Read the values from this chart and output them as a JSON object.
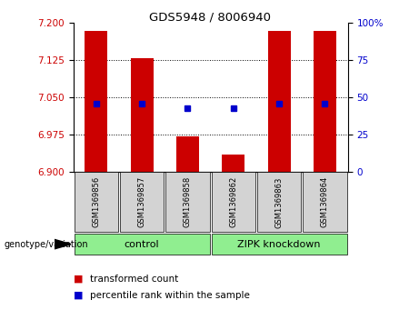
{
  "title": "GDS5948 / 8006940",
  "samples": [
    "GSM1369856",
    "GSM1369857",
    "GSM1369858",
    "GSM1369862",
    "GSM1369863",
    "GSM1369864"
  ],
  "transformed_counts": [
    7.185,
    7.13,
    6.972,
    6.935,
    7.185,
    7.185
  ],
  "percentile_ranks": [
    46,
    46,
    43,
    43,
    46,
    46
  ],
  "ylim_left": [
    6.9,
    7.2
  ],
  "ylim_right": [
    0,
    100
  ],
  "yticks_left": [
    6.9,
    6.975,
    7.05,
    7.125,
    7.2
  ],
  "yticks_right": [
    0,
    25,
    50,
    75,
    100
  ],
  "bar_color": "#cc0000",
  "dot_color": "#0000cc",
  "left_label_color": "#cc0000",
  "right_label_color": "#0000cc",
  "legend_tc": "transformed count",
  "legend_pr": "percentile rank within the sample",
  "group_info": [
    {
      "label": "control",
      "start": 0,
      "end": 3
    },
    {
      "label": "ZIPK knockdown",
      "start": 3,
      "end": 6
    }
  ],
  "group_color": "#90EE90",
  "sample_box_color": "#d3d3d3"
}
